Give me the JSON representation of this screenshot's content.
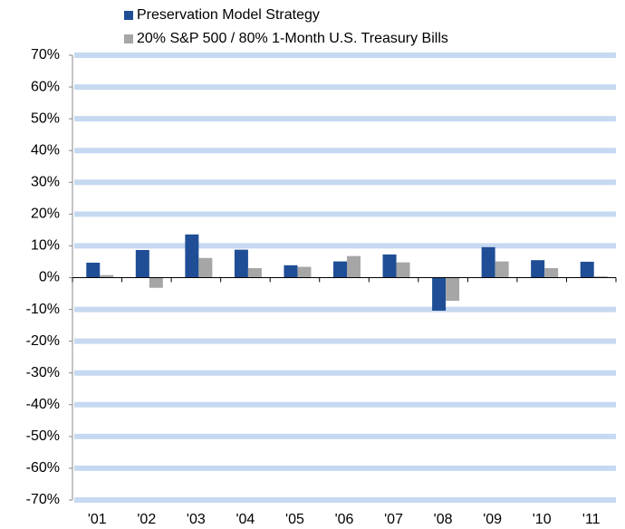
{
  "chart_data": {
    "type": "bar",
    "categories": [
      "'01",
      "'02",
      "'03",
      "'04",
      "'05",
      "'06",
      "'07",
      "'08",
      "'09",
      "'10",
      "'11"
    ],
    "series": [
      {
        "name": "Preservation Model Strategy",
        "color": "#1f4e96",
        "values": [
          4.7,
          8.7,
          13.6,
          8.8,
          3.9,
          5.1,
          7.3,
          -10.4,
          9.6,
          5.5,
          5.0
        ]
      },
      {
        "name": "20% S&P 500 / 80% 1-Month U.S. Treasury Bills",
        "color": "#a6a6a6",
        "values": [
          0.8,
          -3.2,
          6.2,
          3.0,
          3.4,
          6.8,
          4.8,
          -7.3,
          5.1,
          3.0,
          0.4
        ]
      }
    ],
    "ylim": [
      -70,
      70
    ],
    "yticks": [
      {
        "value": -70,
        "label": "-70%"
      },
      {
        "value": -60,
        "label": "-60%"
      },
      {
        "value": -50,
        "label": "-50%"
      },
      {
        "value": -40,
        "label": "-40%"
      },
      {
        "value": -30,
        "label": "-30%"
      },
      {
        "value": -20,
        "label": "-20%"
      },
      {
        "value": -10,
        "label": "-10%"
      },
      {
        "value": 0,
        "label": "0%"
      },
      {
        "value": 10,
        "label": "10%"
      },
      {
        "value": 20,
        "label": "20%"
      },
      {
        "value": 30,
        "label": "30%"
      },
      {
        "value": 40,
        "label": "40%"
      },
      {
        "value": 50,
        "label": "50%"
      },
      {
        "value": 60,
        "label": "60%"
      },
      {
        "value": 70,
        "label": "70%"
      }
    ],
    "grid": true,
    "grid_color": "#c6d9f1"
  }
}
